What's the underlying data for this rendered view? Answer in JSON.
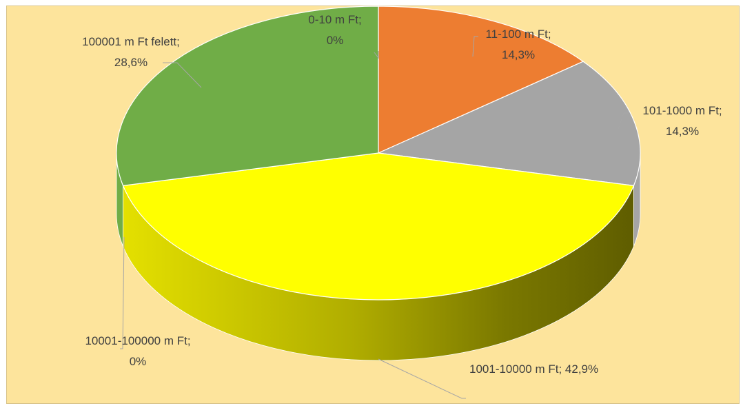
{
  "chart_data": {
    "type": "pie",
    "title": "",
    "slices": [
      {
        "category": "0-10 m Ft",
        "value": 0,
        "label_line1": "0-10 m Ft;",
        "label_line2": "0%",
        "color": "#5b9bd5"
      },
      {
        "category": "11-100 m Ft",
        "value": 14.3,
        "label_line1": "11-100 m Ft;",
        "label_line2": "14,3%",
        "color": "#ed7d31"
      },
      {
        "category": "101-1000 m Ft",
        "value": 14.3,
        "label_line1": "101-1000 m Ft;",
        "label_line2": "14,3%",
        "color": "#a5a5a5"
      },
      {
        "category": "1001-10000 m Ft",
        "value": 42.9,
        "label_line1": "1001-10000 m Ft; 42,9%",
        "label_line2": "",
        "color": "#ffff00"
      },
      {
        "category": "10001-100000 m Ft",
        "value": 0,
        "label_line1": "10001-100000 m Ft;",
        "label_line2": "0%",
        "color": "#4472c4"
      },
      {
        "category": "100001 m Ft felett",
        "value": 28.6,
        "label_line1": "100001 m Ft felett;",
        "label_line2": "28,6%",
        "color": "#70ad47"
      }
    ],
    "background": "#fde49c",
    "legend": "none",
    "style": "3d-pie"
  }
}
